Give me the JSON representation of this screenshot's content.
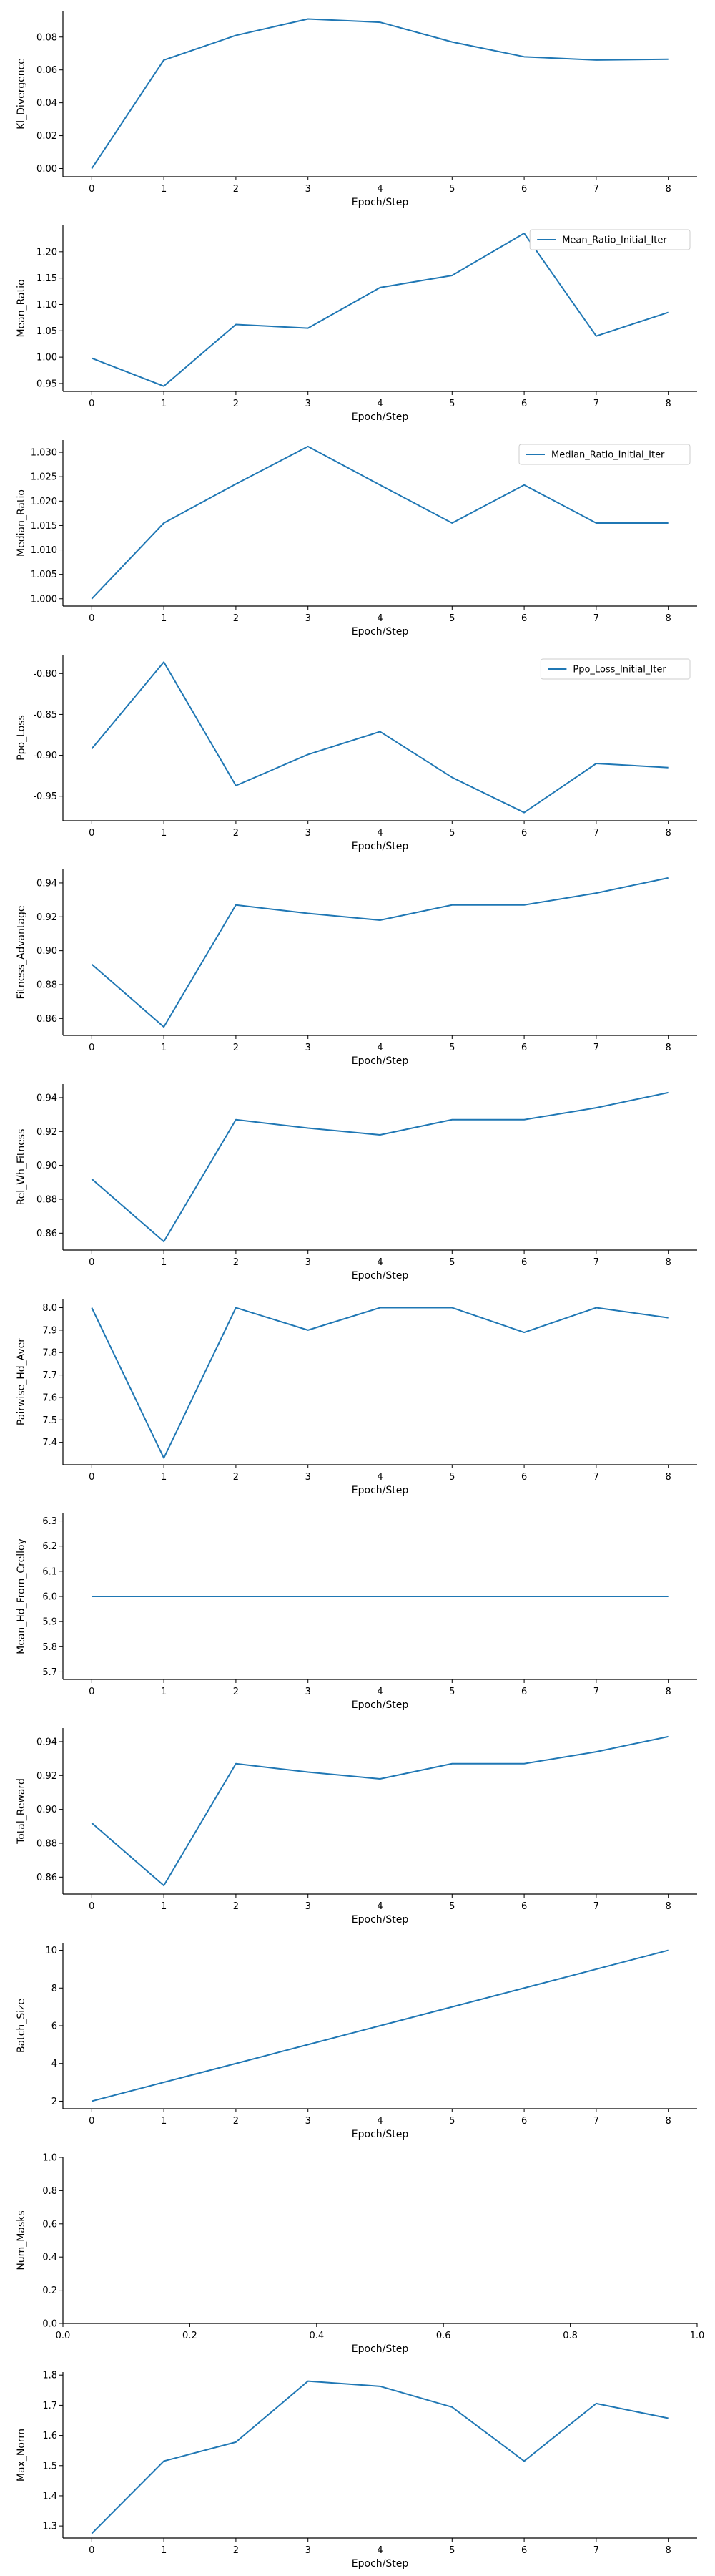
{
  "chart_data": [
    {
      "type": "line",
      "xlabel": "Epoch/Step",
      "ylabel": "Kl_Divergence",
      "x": [
        0,
        1,
        2,
        3,
        4,
        5,
        6,
        7,
        8
      ],
      "xticks": [
        "0",
        "1",
        "2",
        "3",
        "4",
        "5",
        "6",
        "7",
        "8"
      ],
      "xlim": [
        -0.4,
        8.4
      ],
      "ylim": [
        -0.005,
        0.096
      ],
      "yticks": [
        "0.00",
        "0.02",
        "0.04",
        "0.06",
        "0.08"
      ],
      "ytick_values": [
        0,
        0.02,
        0.04,
        0.06,
        0.08
      ],
      "grid": false,
      "series": [
        {
          "color": "#1f77b4",
          "values": [
            0.0,
            0.066,
            0.081,
            0.091,
            0.089,
            0.077,
            0.068,
            0.066,
            0.0665
          ]
        }
      ]
    },
    {
      "type": "line",
      "xlabel": "Epoch/Step",
      "ylabel": "Mean_Ratio",
      "x": [
        0,
        1,
        2,
        3,
        4,
        5,
        6,
        7,
        8
      ],
      "xticks": [
        "0",
        "1",
        "2",
        "3",
        "4",
        "5",
        "6",
        "7",
        "8"
      ],
      "xlim": [
        -0.4,
        8.4
      ],
      "ylim": [
        0.935,
        1.25
      ],
      "yticks": [
        "0.95",
        "1.00",
        "1.05",
        "1.10",
        "1.15",
        "1.20"
      ],
      "ytick_values": [
        0.95,
        1.0,
        1.05,
        1.1,
        1.15,
        1.2
      ],
      "grid": false,
      "legend": "top-right",
      "series": [
        {
          "name": "Mean_Ratio_Initial_Iter",
          "color": "#1f77b4",
          "values": [
            0.998,
            0.945,
            1.062,
            1.055,
            1.132,
            1.155,
            1.235,
            1.04,
            1.085
          ]
        }
      ]
    },
    {
      "type": "line",
      "xlabel": "Epoch/Step",
      "ylabel": "Median_Ratio",
      "x": [
        0,
        1,
        2,
        3,
        4,
        5,
        6,
        7,
        8
      ],
      "xticks": [
        "0",
        "1",
        "2",
        "3",
        "4",
        "5",
        "6",
        "7",
        "8"
      ],
      "xlim": [
        -0.4,
        8.4
      ],
      "ylim": [
        0.9985,
        1.0325
      ],
      "yticks": [
        "1.000",
        "1.005",
        "1.010",
        "1.015",
        "1.020",
        "1.025",
        "1.030"
      ],
      "ytick_values": [
        1.0,
        1.005,
        1.01,
        1.015,
        1.02,
        1.025,
        1.03
      ],
      "grid": false,
      "legend": "top-right",
      "series": [
        {
          "name": "Median_Ratio_Initial_Iter",
          "color": "#1f77b4",
          "values": [
            1.0,
            1.0155,
            1.0235,
            1.0312,
            1.0233,
            1.0155,
            1.0233,
            1.0155,
            1.0155
          ]
        }
      ]
    },
    {
      "type": "line",
      "xlabel": "Epoch/Step",
      "ylabel": "Ppo_Loss",
      "x": [
        0,
        1,
        2,
        3,
        4,
        5,
        6,
        7,
        8
      ],
      "xticks": [
        "0",
        "1",
        "2",
        "3",
        "4",
        "5",
        "6",
        "7",
        "8"
      ],
      "xlim": [
        -0.4,
        8.4
      ],
      "ylim": [
        -0.98,
        -0.777
      ],
      "yticks": [
        "-0.95",
        "-0.90",
        "-0.85",
        "-0.80"
      ],
      "ytick_values": [
        -0.95,
        -0.9,
        -0.85,
        -0.8
      ],
      "grid": false,
      "legend": "top-right",
      "series": [
        {
          "name": "Ppo_Loss_Initial_Iter",
          "color": "#1f77b4",
          "values": [
            -0.892,
            -0.786,
            -0.937,
            -0.899,
            -0.871,
            -0.927,
            -0.97,
            -0.91,
            -0.915
          ]
        }
      ]
    },
    {
      "type": "line",
      "xlabel": "Epoch/Step",
      "ylabel": "Fitness_Advantage",
      "x": [
        0,
        1,
        2,
        3,
        4,
        5,
        6,
        7,
        8
      ],
      "xticks": [
        "0",
        "1",
        "2",
        "3",
        "4",
        "5",
        "6",
        "7",
        "8"
      ],
      "xlim": [
        -0.4,
        8.4
      ],
      "ylim": [
        0.85,
        0.948
      ],
      "yticks": [
        "0.86",
        "0.88",
        "0.90",
        "0.92",
        "0.94"
      ],
      "ytick_values": [
        0.86,
        0.88,
        0.9,
        0.92,
        0.94
      ],
      "grid": false,
      "series": [
        {
          "color": "#1f77b4",
          "values": [
            0.892,
            0.855,
            0.927,
            0.922,
            0.918,
            0.927,
            0.927,
            0.934,
            0.943
          ]
        }
      ]
    },
    {
      "type": "line",
      "xlabel": "Epoch/Step",
      "ylabel": "Rel_Wh_Fitness",
      "x": [
        0,
        1,
        2,
        3,
        4,
        5,
        6,
        7,
        8
      ],
      "xticks": [
        "0",
        "1",
        "2",
        "3",
        "4",
        "5",
        "6",
        "7",
        "8"
      ],
      "xlim": [
        -0.4,
        8.4
      ],
      "ylim": [
        0.85,
        0.948
      ],
      "yticks": [
        "0.86",
        "0.88",
        "0.90",
        "0.92",
        "0.94"
      ],
      "ytick_values": [
        0.86,
        0.88,
        0.9,
        0.92,
        0.94
      ],
      "grid": false,
      "series": [
        {
          "color": "#1f77b4",
          "values": [
            0.892,
            0.855,
            0.927,
            0.922,
            0.918,
            0.927,
            0.927,
            0.934,
            0.943
          ]
        }
      ]
    },
    {
      "type": "line",
      "xlabel": "Epoch/Step",
      "ylabel": "Pairwise_Hd_Aver",
      "x": [
        0,
        1,
        2,
        3,
        4,
        5,
        6,
        7,
        8
      ],
      "xticks": [
        "0",
        "1",
        "2",
        "3",
        "4",
        "5",
        "6",
        "7",
        "8"
      ],
      "xlim": [
        -0.4,
        8.4
      ],
      "ylim": [
        7.3,
        8.04
      ],
      "yticks": [
        "7.4",
        "7.5",
        "7.6",
        "7.7",
        "7.8",
        "7.9",
        "8.0"
      ],
      "ytick_values": [
        7.4,
        7.5,
        7.6,
        7.7,
        7.8,
        7.9,
        8.0
      ],
      "grid": false,
      "series": [
        {
          "color": "#1f77b4",
          "values": [
            8.0,
            7.33,
            8.0,
            7.9,
            8.0,
            8.0,
            7.89,
            8.0,
            7.955
          ]
        }
      ]
    },
    {
      "type": "line",
      "xlabel": "Epoch/Step",
      "ylabel": "Mean_Hd_From_Crelloy",
      "x": [
        0,
        1,
        2,
        3,
        4,
        5,
        6,
        7,
        8
      ],
      "xticks": [
        "0",
        "1",
        "2",
        "3",
        "4",
        "5",
        "6",
        "7",
        "8"
      ],
      "xlim": [
        -0.4,
        8.4
      ],
      "ylim": [
        5.67,
        6.33
      ],
      "yticks": [
        "5.7",
        "5.8",
        "5.9",
        "6.0",
        "6.1",
        "6.2",
        "6.3"
      ],
      "ytick_values": [
        5.7,
        5.8,
        5.9,
        6.0,
        6.1,
        6.2,
        6.3
      ],
      "grid": false,
      "series": [
        {
          "color": "#1f77b4",
          "values": [
            6.0,
            6.0,
            6.0,
            6.0,
            6.0,
            6.0,
            6.0,
            6.0,
            6.0
          ]
        }
      ]
    },
    {
      "type": "line",
      "xlabel": "Epoch/Step",
      "ylabel": "Total_Reward",
      "x": [
        0,
        1,
        2,
        3,
        4,
        5,
        6,
        7,
        8
      ],
      "xticks": [
        "0",
        "1",
        "2",
        "3",
        "4",
        "5",
        "6",
        "7",
        "8"
      ],
      "xlim": [
        -0.4,
        8.4
      ],
      "ylim": [
        0.85,
        0.948
      ],
      "yticks": [
        "0.86",
        "0.88",
        "0.90",
        "0.92",
        "0.94"
      ],
      "ytick_values": [
        0.86,
        0.88,
        0.9,
        0.92,
        0.94
      ],
      "grid": false,
      "series": [
        {
          "color": "#1f77b4",
          "values": [
            0.892,
            0.855,
            0.927,
            0.922,
            0.918,
            0.927,
            0.927,
            0.934,
            0.943
          ]
        }
      ]
    },
    {
      "type": "line",
      "xlabel": "Epoch/Step",
      "ylabel": "Batch_Size",
      "x": [
        0,
        1,
        2,
        3,
        4,
        5,
        6,
        7,
        8
      ],
      "xticks": [
        "0",
        "1",
        "2",
        "3",
        "4",
        "5",
        "6",
        "7",
        "8"
      ],
      "xlim": [
        -0.4,
        8.4
      ],
      "ylim": [
        1.6,
        10.4
      ],
      "yticks": [
        "2",
        "4",
        "6",
        "8",
        "10"
      ],
      "ytick_values": [
        2,
        4,
        6,
        8,
        10
      ],
      "grid": false,
      "series": [
        {
          "color": "#1f77b4",
          "values": [
            2,
            3,
            4,
            5,
            6,
            7,
            8,
            9,
            10
          ]
        }
      ]
    },
    {
      "type": "line",
      "xlabel": "Epoch/Step",
      "ylabel": "Num_Masks",
      "x": [],
      "xticks": [
        "0.0",
        "0.2",
        "0.4",
        "0.6",
        "0.8",
        "1.0"
      ],
      "xtick_values": [
        0,
        0.2,
        0.4,
        0.6,
        0.8,
        1.0
      ],
      "xlim": [
        0,
        1
      ],
      "ylim": [
        0,
        1
      ],
      "yticks": [
        "0.0",
        "0.2",
        "0.4",
        "0.6",
        "0.8",
        "1.0"
      ],
      "ytick_values": [
        0,
        0.2,
        0.4,
        0.6,
        0.8,
        1.0
      ],
      "grid": false,
      "series": []
    },
    {
      "type": "line",
      "xlabel": "Epoch/Step",
      "ylabel": "Max_Norm",
      "x": [
        0,
        1,
        2,
        3,
        4,
        5,
        6,
        7,
        8
      ],
      "xticks": [
        "0",
        "1",
        "2",
        "3",
        "4",
        "5",
        "6",
        "7",
        "8"
      ],
      "xlim": [
        -0.4,
        8.4
      ],
      "ylim": [
        1.26,
        1.81
      ],
      "yticks": [
        "1.3",
        "1.4",
        "1.5",
        "1.6",
        "1.7",
        "1.8"
      ],
      "ytick_values": [
        1.3,
        1.4,
        1.5,
        1.6,
        1.7,
        1.8
      ],
      "grid": false,
      "series": [
        {
          "color": "#1f77b4",
          "values": [
            1.275,
            1.515,
            1.578,
            1.78,
            1.763,
            1.694,
            1.515,
            1.706,
            1.657
          ]
        }
      ]
    }
  ]
}
